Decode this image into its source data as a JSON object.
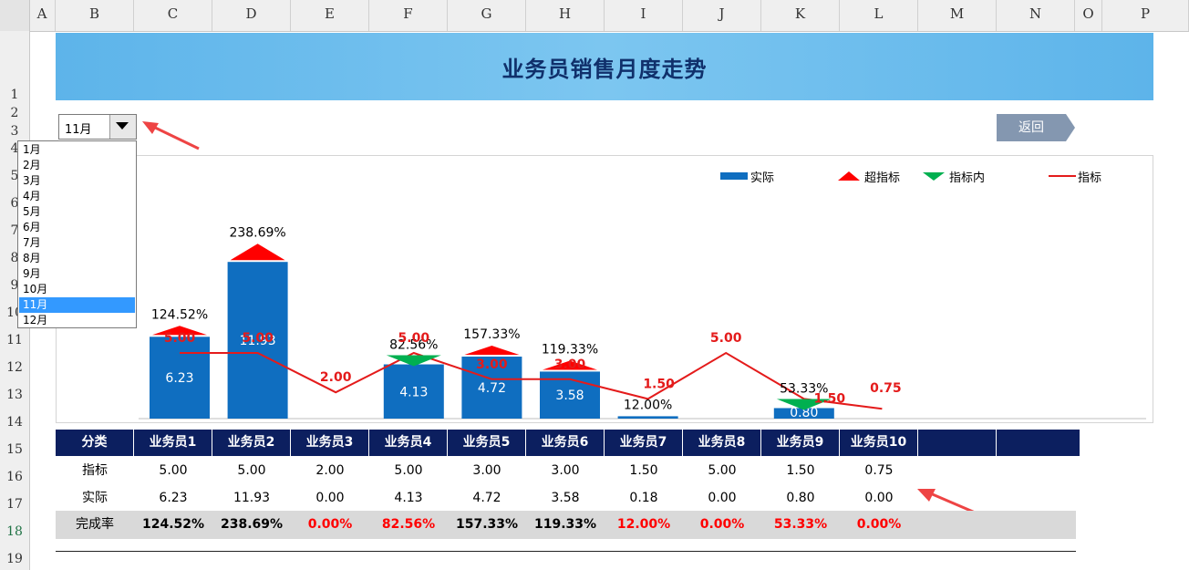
{
  "sheet": {
    "columns": [
      "A",
      "B",
      "C",
      "D",
      "E",
      "F",
      "G",
      "H",
      "I",
      "J",
      "K",
      "L",
      "M",
      "N",
      "O",
      "P"
    ],
    "rows": [
      "1",
      "2",
      "3",
      "4",
      "5",
      "6",
      "7",
      "8",
      "9",
      "10",
      "11",
      "12",
      "13",
      "14",
      "15",
      "16",
      "17",
      "18",
      "19"
    ]
  },
  "title": "业务员销售月度走势",
  "dropdown": {
    "selected": "11月",
    "options": [
      "1月",
      "2月",
      "3月",
      "4月",
      "5月",
      "6月",
      "7月",
      "8月",
      "9月",
      "10月",
      "11月",
      "12月"
    ],
    "selected_index": 10
  },
  "back_button": "返回",
  "legend": {
    "actual": "实际",
    "over": "超指标",
    "within": "指标内",
    "target": "指标"
  },
  "colors": {
    "bar": "#0f6ec0",
    "over": "#ff0000",
    "within": "#00b050",
    "target_line": "#e41b1b",
    "header_bg": "#0c1f5f",
    "rate_bg": "#d9d9d9"
  },
  "chart_data": {
    "type": "bar",
    "categories": [
      "业务员1",
      "业务员2",
      "业务员3",
      "业务员4",
      "业务员5",
      "业务员6",
      "业务员7",
      "业务员8",
      "业务员9",
      "业务员10"
    ],
    "series": [
      {
        "name": "实际",
        "type": "bar",
        "values": [
          6.23,
          11.93,
          0.0,
          4.13,
          4.72,
          3.58,
          0.18,
          0.0,
          0.8,
          0.0
        ]
      },
      {
        "name": "指标",
        "type": "line",
        "values": [
          5.0,
          5.0,
          2.0,
          5.0,
          3.0,
          3.0,
          1.5,
          5.0,
          1.5,
          0.75
        ]
      }
    ],
    "bar_labels": [
      "6.23",
      "11.93",
      "",
      "4.13",
      "4.72",
      "3.58",
      "",
      "",
      "0.80",
      ""
    ],
    "target_labels": [
      "5.00",
      "5.00",
      "2.00",
      "5.00",
      "3.00",
      "3.00",
      "1.50",
      "5.00",
      "1.50",
      "0.75"
    ],
    "rate_labels": [
      "124.52%",
      "238.69%",
      "",
      "82.56%",
      "157.33%",
      "119.33%",
      "12.00%",
      "",
      "53.33%",
      ""
    ],
    "markers": [
      "over",
      "over",
      "",
      "within",
      "over",
      "over",
      "",
      "",
      "within",
      ""
    ],
    "ylim": [
      0,
      14
    ]
  },
  "table": {
    "header_label": "分类",
    "row_target_label": "指标",
    "row_actual_label": "实际",
    "row_rate_label": "完成率",
    "target": [
      "5.00",
      "5.00",
      "2.00",
      "5.00",
      "3.00",
      "3.00",
      "1.50",
      "5.00",
      "1.50",
      "0.75"
    ],
    "actual": [
      "6.23",
      "11.93",
      "0.00",
      "4.13",
      "4.72",
      "3.58",
      "0.18",
      "0.00",
      "0.80",
      "0.00"
    ],
    "rate": [
      "124.52%",
      "238.69%",
      "0.00%",
      "82.56%",
      "157.33%",
      "119.33%",
      "12.00%",
      "0.00%",
      "53.33%",
      "0.00%"
    ],
    "rate_red": [
      false,
      false,
      true,
      true,
      false,
      false,
      true,
      true,
      true,
      true
    ]
  }
}
